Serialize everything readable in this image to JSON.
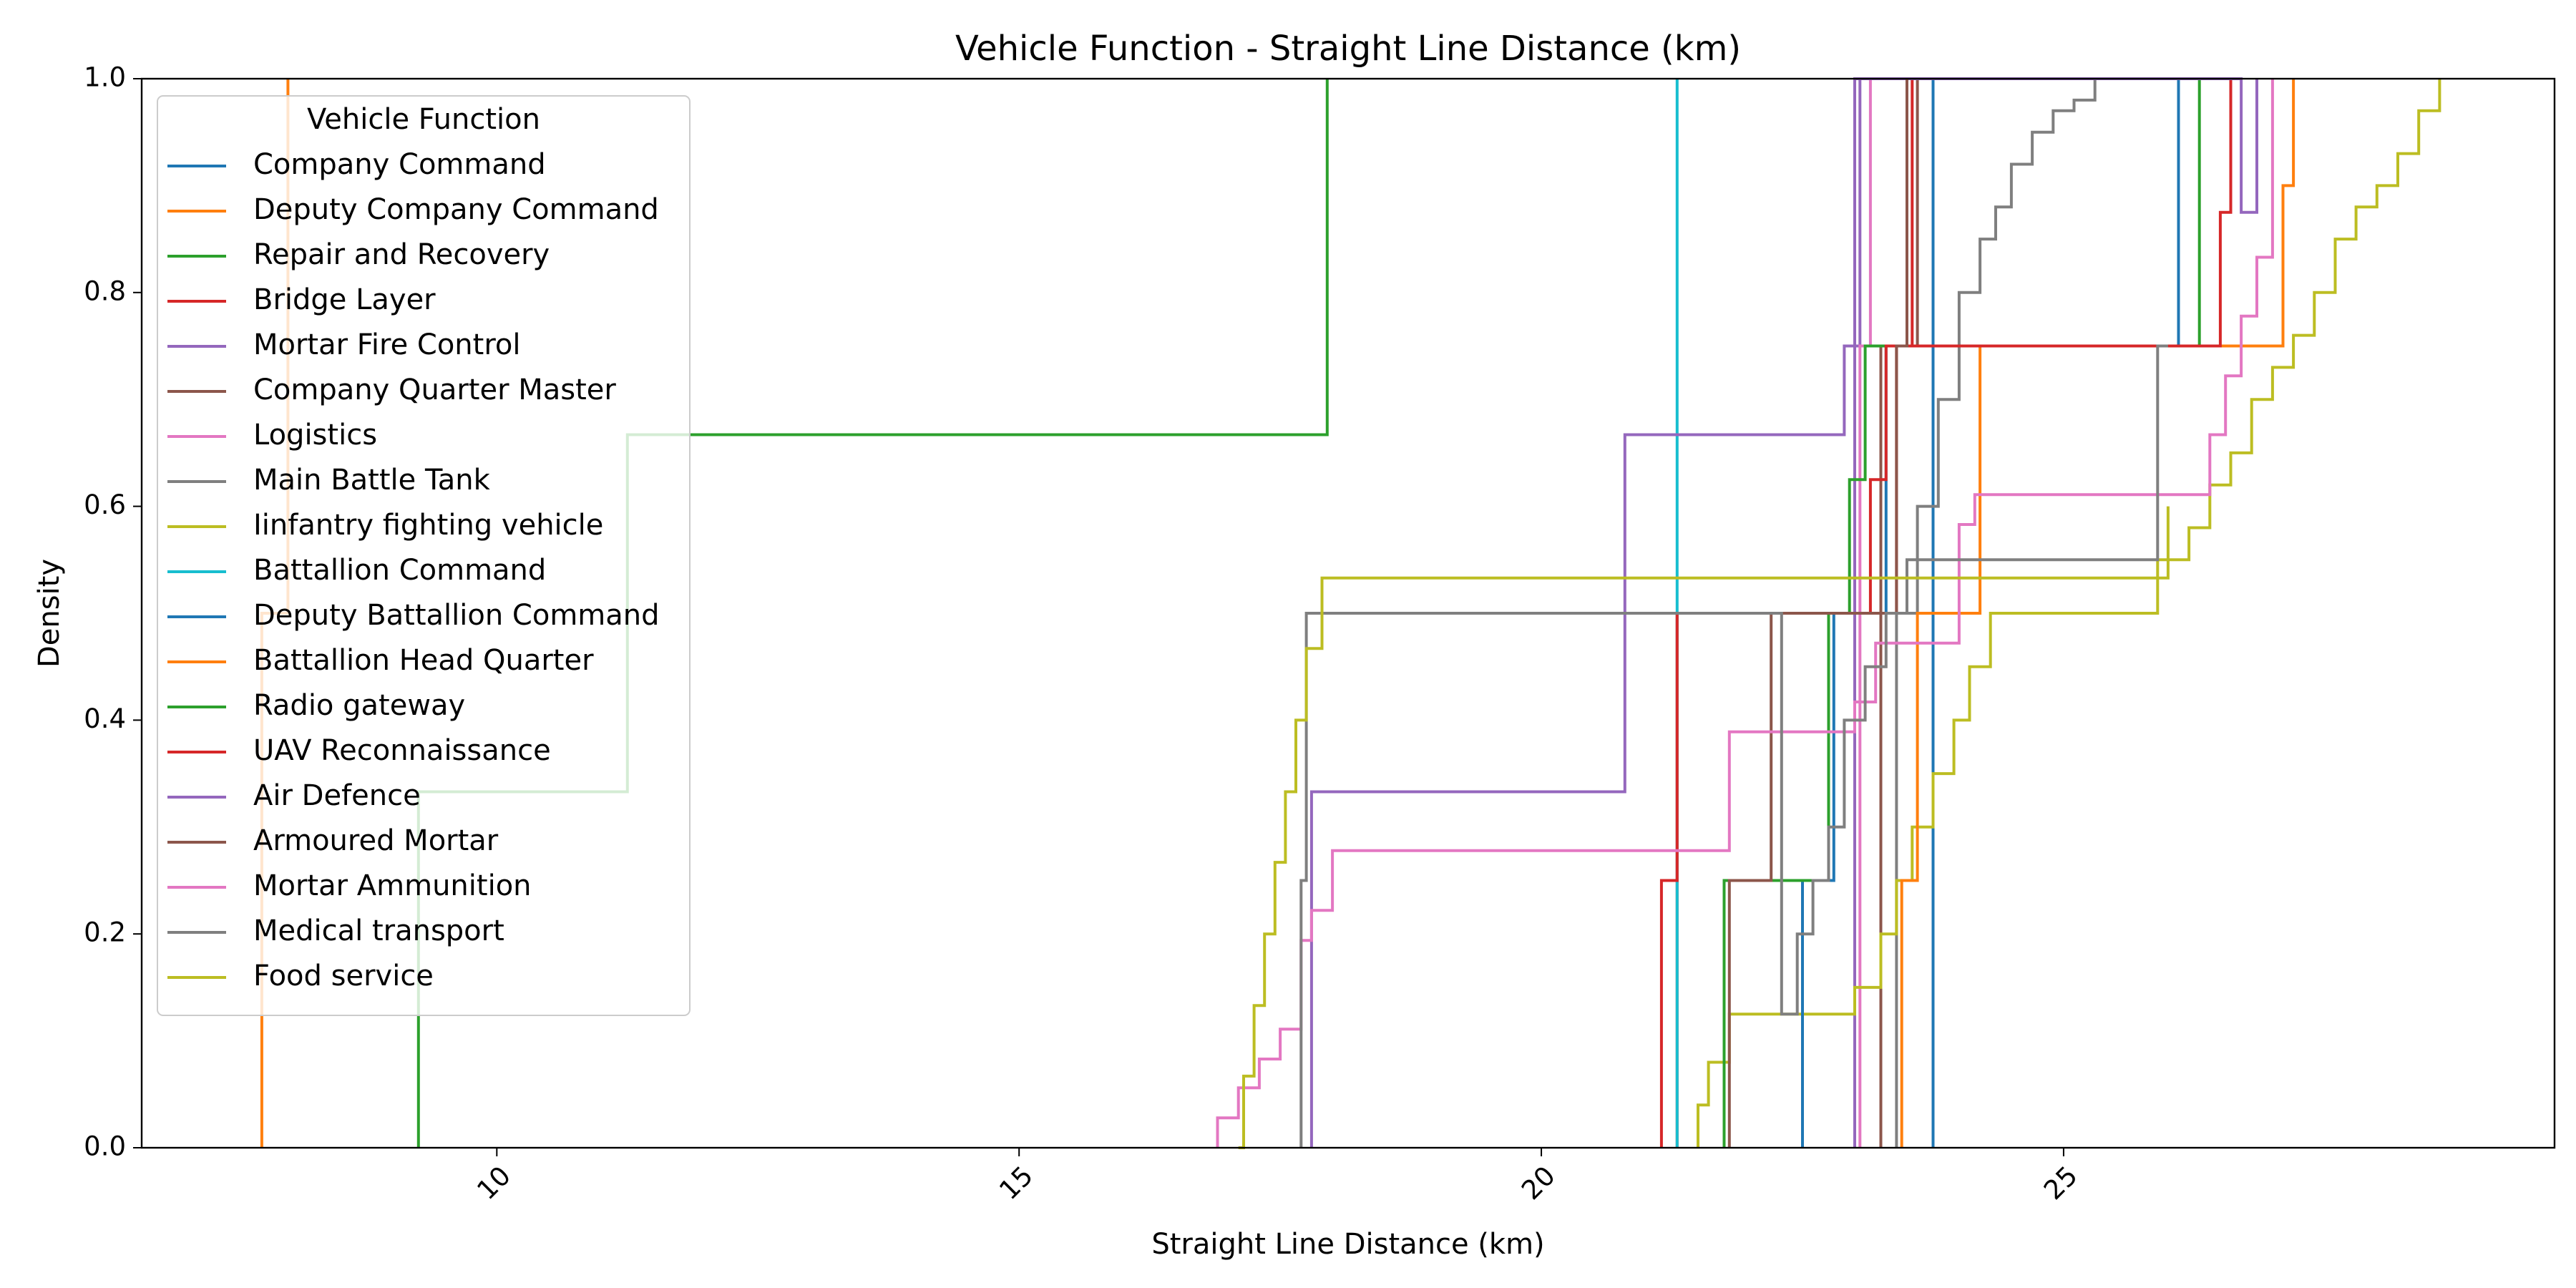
{
  "chart_data": {
    "type": "line",
    "title": "Vehicle Function - Straight Line Distance (km)",
    "xlabel": "Straight Line Distance (km)",
    "ylabel": "Density",
    "xlim": [
      6.6,
      29.7
    ],
    "ylim": [
      0.0,
      1.0
    ],
    "xticks": [
      10,
      15,
      20,
      25
    ],
    "xtick_labels": [
      "10",
      "15",
      "20",
      "25"
    ],
    "xtick_rotation": 45,
    "yticks": [
      0.0,
      0.2,
      0.4,
      0.6,
      0.8,
      1.0
    ],
    "ytick_labels": [
      "0.0",
      "0.2",
      "0.4",
      "0.6",
      "0.8",
      "1.0"
    ],
    "grid": false,
    "legend": {
      "title": "Vehicle Function",
      "placement": "upper-left"
    },
    "series": [
      {
        "name": "Company Command",
        "color": "#1f77b4",
        "x": [
          23.75,
          23.75,
          23.75
        ],
        "y": [
          0,
          1.0,
          1.0
        ]
      },
      {
        "name": "Deputy Company Command",
        "color": "#ff7f0e",
        "x": [
          7.75,
          8.0
        ],
        "y": [
          0.5,
          1.0
        ]
      },
      {
        "name": "Repair and Recovery",
        "color": "#2ca02c",
        "x": [
          9.25,
          11.25,
          17.95
        ],
        "y": [
          0.333,
          0.667,
          1.0
        ]
      },
      {
        "name": "Bridge Layer",
        "color": "#d62728",
        "x": [
          21.3,
          23.4,
          23.55
        ],
        "y": [
          0.5,
          0.75,
          1.0
        ]
      },
      {
        "name": "Mortar Fire Control",
        "color": "#9467bd",
        "x": [
          23.0,
          23.05
        ],
        "y": [
          0.75,
          1.0
        ]
      },
      {
        "name": "Company Quarter Master",
        "color": "#8c564b",
        "x": [
          23.25,
          23.4,
          23.6
        ],
        "y": [
          0.75,
          0.75,
          1.0
        ]
      },
      {
        "name": "Logistics",
        "color": "#e377c2",
        "x": [
          23.05,
          23.15
        ],
        "y": [
          0.75,
          1.0
        ]
      },
      {
        "name": "Main Battle Tank",
        "color": "#7f7f7f",
        "x": [
          23.4,
          23.6,
          23.8,
          24.0,
          24.2,
          24.35,
          24.5,
          24.7,
          24.9,
          25.1,
          25.3
        ],
        "y": [
          0.5,
          0.6,
          0.7,
          0.8,
          0.85,
          0.88,
          0.92,
          0.95,
          0.97,
          0.98,
          1.0
        ]
      },
      {
        "name": "Iinfantry fighting vehicle",
        "color": "#bcbd22",
        "x": [
          21.5,
          21.6,
          21.8,
          22.2,
          23.0,
          23.25,
          23.4,
          23.55,
          23.75,
          23.95,
          24.1,
          24.3,
          24.5,
          25.9,
          26.2,
          26.4,
          26.6,
          26.8,
          27.0,
          27.2,
          27.4,
          27.6,
          27.8,
          28.0,
          28.2,
          28.4,
          28.6
        ],
        "y": [
          0.04,
          0.08,
          0.125,
          0.125,
          0.15,
          0.2,
          0.25,
          0.3,
          0.35,
          0.4,
          0.45,
          0.5,
          0.5,
          0.55,
          0.58,
          0.62,
          0.65,
          0.7,
          0.73,
          0.76,
          0.8,
          0.85,
          0.88,
          0.9,
          0.93,
          0.97,
          1.0
        ]
      },
      {
        "name": "Battallion Command",
        "color": "#17becf",
        "x": [
          21.3
        ],
        "y": [
          1.0
        ]
      },
      {
        "name": "Deputy Battallion Command",
        "color": "#1f77b4",
        "x": [
          22.5,
          22.8,
          23.3,
          26.0,
          26.1
        ],
        "y": [
          0.25,
          0.5,
          0.75,
          0.75,
          1.0
        ]
      },
      {
        "name": "Battallion Head Quarter",
        "color": "#ff7f0e",
        "x": [
          23.45,
          23.6,
          24.2,
          26.0,
          27.1,
          27.2
        ],
        "y": [
          0.25,
          0.5,
          0.75,
          0.75,
          0.9,
          1.0
        ]
      },
      {
        "name": "Radio gateway",
        "color": "#2ca02c",
        "x": [
          21.75,
          22.75,
          22.95,
          23.1,
          26.2,
          26.3
        ],
        "y": [
          0.25,
          0.5,
          0.625,
          0.75,
          0.75,
          1.0
        ]
      },
      {
        "name": "UAV Reconnaissance",
        "color": "#d62728",
        "x": [
          21.15,
          21.3,
          22.2,
          22.95,
          23.15,
          23.3,
          26.35,
          26.5,
          26.6
        ],
        "y": [
          0.25,
          0.5,
          0.5,
          0.5,
          0.625,
          0.75,
          0.75,
          0.875,
          1.0
        ]
      },
      {
        "name": "Air Defence",
        "color": "#9467bd",
        "x": [
          17.8,
          20.8,
          22.9,
          23.0,
          26.7,
          26.85
        ],
        "y": [
          0.333,
          0.667,
          0.75,
          1.0,
          0.875,
          1.0
        ]
      },
      {
        "name": "Armoured Mortar",
        "color": "#8c564b",
        "x": [
          21.8,
          22.2,
          23.4,
          23.5
        ],
        "y": [
          0.25,
          0.5,
          0.75,
          1.0
        ]
      },
      {
        "name": "Mortar Ammunition",
        "color": "#e377c2",
        "x": [
          16.9,
          17.1,
          17.3,
          17.5,
          17.7,
          17.8,
          18.0,
          21.75,
          21.8,
          23.0,
          23.2,
          24.0,
          24.15,
          26.25,
          26.4,
          26.55,
          26.7,
          26.85,
          27.0
        ],
        "y": [
          0.028,
          0.056,
          0.083,
          0.111,
          0.194,
          0.222,
          0.278,
          0.278,
          0.389,
          0.417,
          0.472,
          0.583,
          0.611,
          0.611,
          0.667,
          0.722,
          0.778,
          0.833,
          1.0
        ]
      },
      {
        "name": "Medical transport",
        "color": "#7f7f7f",
        "x": [
          17.7,
          17.75,
          22.3,
          22.45,
          22.6,
          22.75,
          22.9,
          23.1,
          23.3,
          23.5,
          25.9,
          26.0
        ],
        "y": [
          0.25,
          0.5,
          0.125,
          0.2,
          0.25,
          0.3,
          0.4,
          0.45,
          0.5,
          0.55,
          0.75,
          0.75
        ]
      },
      {
        "name": "Food service",
        "color": "#bcbd22",
        "x": [
          17.1,
          17.15,
          17.25,
          17.35,
          17.45,
          17.55,
          17.65,
          17.75,
          17.9,
          25.9,
          26.0
        ],
        "y": [
          0.0,
          0.067,
          0.133,
          0.2,
          0.267,
          0.333,
          0.4,
          0.467,
          0.533,
          0.533,
          0.6
        ]
      }
    ]
  }
}
